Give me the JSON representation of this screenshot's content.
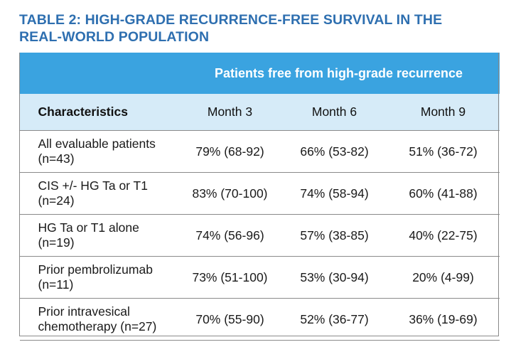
{
  "title": {
    "line1": "TABLE 2: HIGH-GRADE RECURRENCE-FREE SURVIVAL IN THE",
    "line2": "REAL-WORLD POPULATION"
  },
  "table": {
    "group_header": "Patients free from high-grade recurrence",
    "columns": [
      "Characteristics",
      "Month 3",
      "Month 6",
      "Month 9"
    ],
    "rows": [
      {
        "label_line1": "All evaluable patients",
        "label_line2": "(n=43)",
        "m3": "79% (68-92)",
        "m6": "66% (53-82)",
        "m9": "51% (36-72)"
      },
      {
        "label_line1": "CIS +/- HG Ta or T1",
        "label_line2": "(n=24)",
        "m3": "83% (70-100)",
        "m6": "74% (58-94)",
        "m9": "60% (41-88)"
      },
      {
        "label_line1": "HG Ta or T1 alone",
        "label_line2": "(n=19)",
        "m3": "74% (56-96)",
        "m6": "57% (38-85)",
        "m9": "40% (22-75)"
      },
      {
        "label_line1": "Prior pembrolizumab",
        "label_line2": "(n=11)",
        "m3": "73% (51-100)",
        "m6": "53% (30-94)",
        "m9": "20% (4-99)"
      },
      {
        "label_line1": "Prior intravesical",
        "label_line2": "chemotherapy (n=27)",
        "m3": "70% (55-90)",
        "m6": "52% (36-77)",
        "m9": "36% (19-69)"
      }
    ]
  },
  "colors": {
    "title": "#2e6fb0",
    "group_header_bg": "#3aa3e0",
    "column_header_bg": "#d6ebf8"
  }
}
